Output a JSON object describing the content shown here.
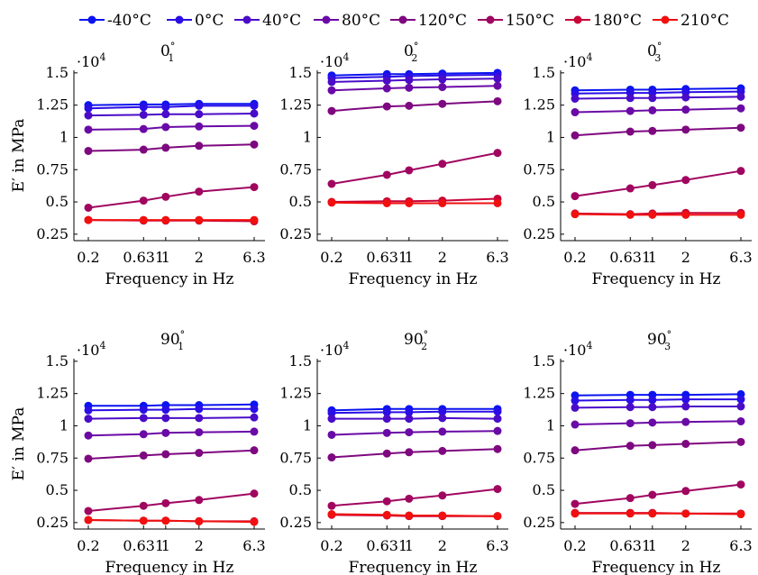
{
  "legend": [
    {
      "label": "-40°C",
      "color": "#0a14f0"
    },
    {
      "label": "0°C",
      "color": "#2a0ee6"
    },
    {
      "label": "40°C",
      "color": "#4a0cc8"
    },
    {
      "label": "80°C",
      "color": "#6a0aa6"
    },
    {
      "label": "120°C",
      "color": "#7e0880"
    },
    {
      "label": "150°C",
      "color": "#a00660"
    },
    {
      "label": "180°C",
      "color": "#c80438"
    },
    {
      "label": "210°C",
      "color": "#f01010"
    }
  ],
  "chart_data": [
    {
      "type": "line",
      "title_base": "0",
      "title_sup": "°",
      "title_sub": "1",
      "exponent_label": "·10",
      "exponent_sup": "4",
      "xlabel": "Frequency in Hz",
      "ylabel": "E′ in MPa",
      "x": [
        0.2,
        0.631,
        1,
        2,
        6.3
      ],
      "xticklabels": [
        "0.2",
        "0.631",
        "1",
        "2",
        "6.3"
      ],
      "yticks": [
        0.25,
        0.5,
        0.75,
        1,
        1.25,
        1.5
      ],
      "yticklabels": [
        "0.25",
        "0.5",
        "0.75",
        "1",
        "1.25",
        "1.5"
      ],
      "ylim": [
        0.2,
        1.52
      ],
      "series": [
        {
          "name": "-40°C",
          "values": [
            1.25,
            1.255,
            1.255,
            1.26,
            1.26
          ]
        },
        {
          "name": "0°C",
          "values": [
            1.225,
            1.235,
            1.235,
            1.245,
            1.245
          ]
        },
        {
          "name": "40°C",
          "values": [
            1.17,
            1.175,
            1.18,
            1.18,
            1.185
          ]
        },
        {
          "name": "80°C",
          "values": [
            1.06,
            1.065,
            1.08,
            1.085,
            1.09
          ]
        },
        {
          "name": "120°C",
          "values": [
            0.895,
            0.905,
            0.92,
            0.935,
            0.945
          ]
        },
        {
          "name": "150°C",
          "values": [
            0.455,
            0.51,
            0.54,
            0.58,
            0.615
          ]
        },
        {
          "name": "180°C",
          "values": [
            0.36,
            0.355,
            0.355,
            0.355,
            0.35
          ]
        },
        {
          "name": "210°C",
          "values": [
            0.36,
            0.36,
            0.36,
            0.36,
            0.36
          ]
        }
      ]
    },
    {
      "type": "line",
      "title_base": "0",
      "title_sup": "°",
      "title_sub": "2",
      "exponent_label": "·10",
      "exponent_sup": "4",
      "xlabel": "Frequency in Hz",
      "ylabel": "",
      "x": [
        0.2,
        0.631,
        1,
        2,
        6.3
      ],
      "xticklabels": [
        "0.2",
        "0.631",
        "1",
        "2",
        "6.3"
      ],
      "yticks": [
        0.25,
        0.5,
        0.75,
        1,
        1.25,
        1.5
      ],
      "yticklabels": [
        "0.25",
        "0.5",
        "0.75",
        "1",
        "1.25",
        "1.5"
      ],
      "ylim": [
        0.2,
        1.52
      ],
      "series": [
        {
          "name": "-40°C",
          "values": [
            1.48,
            1.49,
            1.49,
            1.495,
            1.5
          ]
        },
        {
          "name": "0°C",
          "values": [
            1.46,
            1.47,
            1.475,
            1.48,
            1.485
          ]
        },
        {
          "name": "40°C",
          "values": [
            1.43,
            1.44,
            1.445,
            1.45,
            1.455
          ]
        },
        {
          "name": "80°C",
          "values": [
            1.365,
            1.38,
            1.385,
            1.39,
            1.4
          ]
        },
        {
          "name": "120°C",
          "values": [
            1.205,
            1.24,
            1.245,
            1.26,
            1.28
          ]
        },
        {
          "name": "150°C",
          "values": [
            0.64,
            0.71,
            0.745,
            0.795,
            0.88
          ]
        },
        {
          "name": "180°C",
          "values": [
            0.5,
            0.505,
            0.505,
            0.51,
            0.525
          ]
        },
        {
          "name": "210°C",
          "values": [
            0.495,
            0.49,
            0.49,
            0.49,
            0.49
          ]
        }
      ]
    },
    {
      "type": "line",
      "title_base": "0",
      "title_sup": "°",
      "title_sub": "3",
      "exponent_label": "·10",
      "exponent_sup": "4",
      "xlabel": "Frequency in Hz",
      "ylabel": "",
      "x": [
        0.2,
        0.631,
        1,
        2,
        6.3
      ],
      "xticklabels": [
        "0.2",
        "0.631",
        "1",
        "2",
        "6.3"
      ],
      "yticks": [
        0.25,
        0.5,
        0.75,
        1,
        1.25,
        1.5
      ],
      "yticklabels": [
        "0.25",
        "0.5",
        "0.75",
        "1",
        "1.25",
        "1.5"
      ],
      "ylim": [
        0.2,
        1.52
      ],
      "series": [
        {
          "name": "-40°C",
          "values": [
            1.365,
            1.37,
            1.37,
            1.375,
            1.38
          ]
        },
        {
          "name": "0°C",
          "values": [
            1.34,
            1.345,
            1.345,
            1.35,
            1.355
          ]
        },
        {
          "name": "40°C",
          "values": [
            1.3,
            1.305,
            1.305,
            1.31,
            1.315
          ]
        },
        {
          "name": "80°C",
          "values": [
            1.195,
            1.205,
            1.21,
            1.215,
            1.225
          ]
        },
        {
          "name": "120°C",
          "values": [
            1.015,
            1.045,
            1.05,
            1.06,
            1.075
          ]
        },
        {
          "name": "150°C",
          "values": [
            0.545,
            0.605,
            0.63,
            0.67,
            0.74
          ]
        },
        {
          "name": "180°C",
          "values": [
            0.41,
            0.405,
            0.41,
            0.415,
            0.415
          ]
        },
        {
          "name": "210°C",
          "values": [
            0.405,
            0.4,
            0.4,
            0.4,
            0.4
          ]
        }
      ]
    },
    {
      "type": "line",
      "title_base": "90",
      "title_sup": "°",
      "title_sub": "1",
      "exponent_label": "·10",
      "exponent_sup": "4",
      "xlabel": "Frequency in Hz",
      "ylabel": "E′ in MPa",
      "x": [
        0.2,
        0.631,
        1,
        2,
        6.3
      ],
      "xticklabels": [
        "0.2",
        "0.631",
        "1",
        "2",
        "6.3"
      ],
      "yticks": [
        0.25,
        0.5,
        0.75,
        1,
        1.25,
        1.5
      ],
      "yticklabels": [
        "0.25",
        "0.5",
        "0.75",
        "1",
        "1.25",
        "1.5"
      ],
      "ylim": [
        0.2,
        1.52
      ],
      "series": [
        {
          "name": "-40°C",
          "values": [
            1.155,
            1.155,
            1.16,
            1.16,
            1.165
          ]
        },
        {
          "name": "0°C",
          "values": [
            1.12,
            1.125,
            1.125,
            1.13,
            1.13
          ]
        },
        {
          "name": "40°C",
          "values": [
            1.055,
            1.06,
            1.06,
            1.06,
            1.065
          ]
        },
        {
          "name": "80°C",
          "values": [
            0.925,
            0.935,
            0.945,
            0.95,
            0.955
          ]
        },
        {
          "name": "120°C",
          "values": [
            0.745,
            0.77,
            0.78,
            0.79,
            0.81
          ]
        },
        {
          "name": "150°C",
          "values": [
            0.34,
            0.38,
            0.4,
            0.425,
            0.475
          ]
        },
        {
          "name": "180°C",
          "values": [
            0.27,
            0.265,
            0.265,
            0.26,
            0.26
          ]
        },
        {
          "name": "210°C",
          "values": [
            0.27,
            0.265,
            0.265,
            0.26,
            0.255
          ]
        }
      ]
    },
    {
      "type": "line",
      "title_base": "90",
      "title_sup": "°",
      "title_sub": "2",
      "exponent_label": "·10",
      "exponent_sup": "4",
      "xlabel": "Frequency in Hz",
      "ylabel": "",
      "x": [
        0.2,
        0.631,
        1,
        2,
        6.3
      ],
      "xticklabels": [
        "0.2",
        "0.631",
        "1",
        "2",
        "6.3"
      ],
      "yticks": [
        0.25,
        0.5,
        0.75,
        1,
        1.25,
        1.5
      ],
      "yticklabels": [
        "0.25",
        "0.5",
        "0.75",
        "1",
        "1.25",
        "1.5"
      ],
      "ylim": [
        0.2,
        1.52
      ],
      "series": [
        {
          "name": "-40°C",
          "values": [
            1.12,
            1.13,
            1.13,
            1.13,
            1.13
          ]
        },
        {
          "name": "0°C",
          "values": [
            1.1,
            1.105,
            1.105,
            1.11,
            1.11
          ]
        },
        {
          "name": "40°C",
          "values": [
            1.055,
            1.055,
            1.055,
            1.06,
            1.055
          ]
        },
        {
          "name": "80°C",
          "values": [
            0.93,
            0.945,
            0.95,
            0.955,
            0.96
          ]
        },
        {
          "name": "120°C",
          "values": [
            0.755,
            0.785,
            0.795,
            0.805,
            0.82
          ]
        },
        {
          "name": "150°C",
          "values": [
            0.38,
            0.415,
            0.435,
            0.46,
            0.51
          ]
        },
        {
          "name": "180°C",
          "values": [
            0.31,
            0.305,
            0.3,
            0.3,
            0.3
          ]
        },
        {
          "name": "210°C",
          "values": [
            0.315,
            0.31,
            0.305,
            0.305,
            0.3
          ]
        }
      ]
    },
    {
      "type": "line",
      "title_base": "90",
      "title_sup": "°",
      "title_sub": "3",
      "exponent_label": "·10",
      "exponent_sup": "4",
      "xlabel": "Frequency in Hz",
      "ylabel": "",
      "x": [
        0.2,
        0.631,
        1,
        2,
        6.3
      ],
      "xticklabels": [
        "0.2",
        "0.631",
        "1",
        "2",
        "6.3"
      ],
      "yticks": [
        0.25,
        0.5,
        0.75,
        1,
        1.25,
        1.5
      ],
      "yticklabels": [
        "0.25",
        "0.5",
        "0.75",
        "1",
        "1.25",
        "1.5"
      ],
      "ylim": [
        0.2,
        1.52
      ],
      "series": [
        {
          "name": "-40°C",
          "values": [
            1.235,
            1.24,
            1.24,
            1.24,
            1.245
          ]
        },
        {
          "name": "0°C",
          "values": [
            1.195,
            1.2,
            1.2,
            1.205,
            1.205
          ]
        },
        {
          "name": "40°C",
          "values": [
            1.14,
            1.145,
            1.145,
            1.15,
            1.15
          ]
        },
        {
          "name": "80°C",
          "values": [
            1.01,
            1.02,
            1.025,
            1.03,
            1.035
          ]
        },
        {
          "name": "120°C",
          "values": [
            0.81,
            0.845,
            0.85,
            0.86,
            0.875
          ]
        },
        {
          "name": "150°C",
          "values": [
            0.395,
            0.44,
            0.465,
            0.495,
            0.545
          ]
        },
        {
          "name": "180°C",
          "values": [
            0.325,
            0.325,
            0.325,
            0.32,
            0.32
          ]
        },
        {
          "name": "210°C",
          "values": [
            0.32,
            0.32,
            0.32,
            0.32,
            0.315
          ]
        }
      ]
    }
  ]
}
